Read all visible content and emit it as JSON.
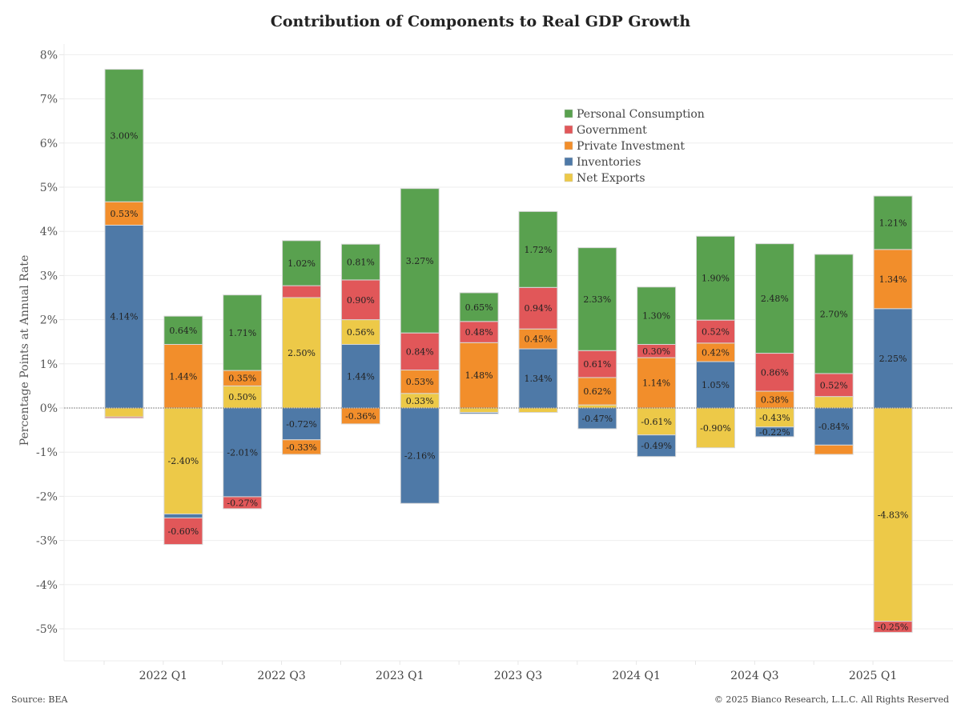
{
  "chart_data": {
    "type": "bar",
    "stacked": true,
    "title": "Contribution of Components to Real GDP Growth",
    "xlabel": "",
    "ylabel": "Percentage Points at Annual Rate",
    "ylim": [
      -5.75,
      8.2
    ],
    "yticks": [
      8,
      7,
      6,
      5,
      4,
      3,
      2,
      1,
      0,
      -1,
      -2,
      -3,
      -4,
      -5
    ],
    "ytick_labels": [
      "8%",
      "7%",
      "6%",
      "5%",
      "4%",
      "3%",
      "2%",
      "1%",
      "0%",
      "-1%",
      "-2%",
      "-3%",
      "-4%",
      "-5%"
    ],
    "grid": true,
    "legend_position": "top-right",
    "categories": [
      "2021 Q4",
      "2022 Q1",
      "2022 Q2",
      "2022 Q3",
      "2022 Q4",
      "2023 Q1",
      "2023 Q2",
      "2023 Q3",
      "2023 Q4",
      "2024 Q1",
      "2024 Q2",
      "2024 Q3",
      "2024 Q4",
      "2025 Q1"
    ],
    "xtick_labels": [
      "",
      "2022 Q1",
      "",
      "2022 Q3",
      "",
      "2023 Q1",
      "",
      "2023 Q3",
      "",
      "2024 Q1",
      "",
      "2024 Q3",
      "",
      "2025 Q1"
    ],
    "series": [
      {
        "name": "Personal Consumption",
        "color": "#59a14f",
        "values": [
          3.0,
          0.64,
          1.71,
          1.02,
          0.81,
          3.27,
          0.65,
          1.72,
          2.33,
          1.3,
          1.9,
          2.48,
          2.7,
          1.21
        ],
        "labels": [
          "3.00%",
          "0.64%",
          "1.71%",
          "1.02%",
          "0.81%",
          "3.27%",
          "0.65%",
          "1.72%",
          "2.33%",
          "1.30%",
          "1.90%",
          "2.48%",
          "2.70%",
          "1.21%"
        ]
      },
      {
        "name": "Government",
        "color": "#e15759",
        "values": [
          -0.03,
          -0.6,
          -0.27,
          0.27,
          0.9,
          0.84,
          0.48,
          0.94,
          0.61,
          0.3,
          0.52,
          0.86,
          0.52,
          -0.25
        ],
        "labels": [
          "",
          "-0.60%",
          "-0.27%",
          "",
          "0.90%",
          "0.84%",
          "0.48%",
          "0.94%",
          "0.61%",
          "0.30%",
          "0.52%",
          "0.86%",
          "0.52%",
          "-0.25%"
        ]
      },
      {
        "name": "Private Investment",
        "color": "#f28e2b",
        "values": [
          0.53,
          1.44,
          0.35,
          -0.33,
          -0.36,
          0.53,
          1.48,
          0.45,
          0.62,
          1.14,
          0.42,
          0.38,
          -0.21,
          1.34
        ],
        "labels": [
          "0.53%",
          "1.44%",
          "0.35%",
          "-0.33%",
          "-0.36%",
          "0.53%",
          "1.48%",
          "0.45%",
          "0.62%",
          "1.14%",
          "0.42%",
          "0.38%",
          "",
          "1.34%"
        ]
      },
      {
        "name": "Inventories",
        "color": "#4e79a7",
        "values": [
          4.14,
          -0.09,
          -2.01,
          -0.72,
          1.44,
          -2.16,
          -0.03,
          1.34,
          -0.47,
          -0.49,
          1.05,
          -0.22,
          -0.84,
          2.25
        ],
        "labels": [
          "4.14%",
          "",
          "-2.01%",
          "-0.72%",
          "1.44%",
          "-2.16%",
          "",
          "1.34%",
          "-0.47%",
          "-0.49%",
          "1.05%",
          "-0.22%",
          "-0.84%",
          "2.25%"
        ]
      },
      {
        "name": "Net Exports",
        "color": "#edc948",
        "values": [
          -0.2,
          -2.4,
          0.5,
          2.5,
          0.56,
          0.33,
          -0.1,
          -0.1,
          0.07,
          -0.61,
          -0.9,
          -0.43,
          0.26,
          -4.83
        ],
        "labels": [
          "",
          "-2.40%",
          "0.50%",
          "2.50%",
          "0.56%",
          "0.33%",
          "",
          "",
          "",
          "-0.61%",
          "-0.90%",
          "-0.43%",
          "",
          "-4.83%"
        ]
      }
    ],
    "stack_order_positive": [
      "Inventories",
      "Net Exports",
      "Private Investment",
      "Government",
      "Personal Consumption"
    ],
    "stack_order_note": "positive segments stack upward in the order drawn; negative segments stack downward"
  },
  "footer": {
    "source": "Source: BEA",
    "copyright": "© 2025 Bianco Research, L.L.C. All Rights Reserved"
  }
}
